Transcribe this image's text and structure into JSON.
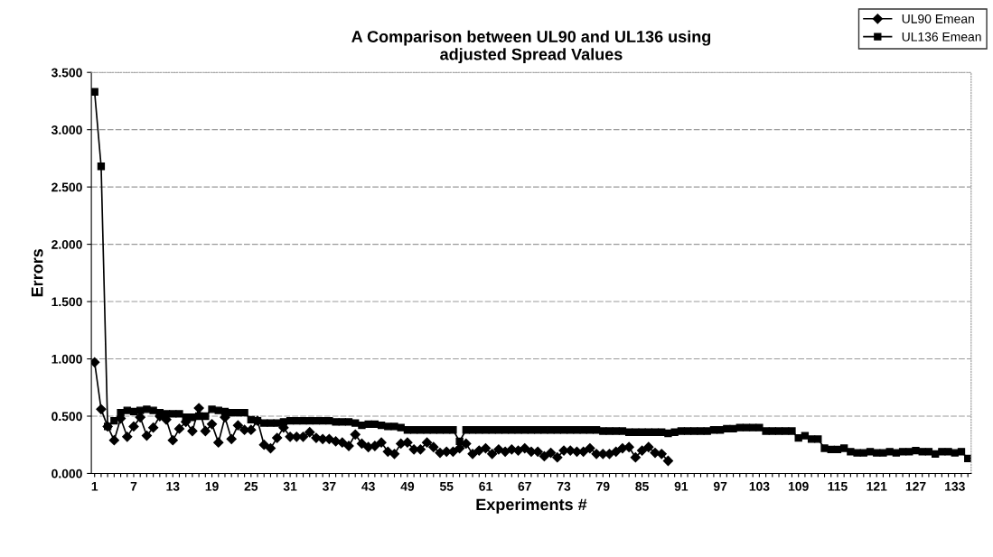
{
  "chart_data": {
    "type": "line",
    "title": "A Comparison between UL90 and UL136 using\nadjusted Spread Values",
    "xlabel": "Experiments #",
    "ylabel": "Errors",
    "categories": [
      "1",
      null,
      null,
      null,
      null,
      null,
      "7",
      null,
      null,
      null,
      null,
      null,
      "13",
      null,
      null,
      null,
      null,
      null,
      "19",
      null,
      null,
      null,
      null,
      null,
      "25",
      null,
      null,
      null,
      null,
      null,
      "31",
      null,
      null,
      null,
      null,
      null,
      "37",
      null,
      null,
      null,
      null,
      null,
      "43",
      null,
      null,
      null,
      null,
      null,
      "49",
      null,
      null,
      null,
      null,
      null,
      "55",
      null,
      null,
      null,
      null,
      null,
      "61",
      null,
      null,
      null,
      null,
      null,
      "67",
      null,
      null,
      null,
      null,
      null,
      "73",
      null,
      null,
      null,
      null,
      null,
      "79",
      null,
      null,
      null,
      null,
      null,
      "85",
      null,
      null,
      null,
      null,
      null,
      "91",
      null,
      null,
      null,
      null,
      null,
      "97",
      null,
      null,
      null,
      null,
      null,
      "103",
      null,
      null,
      null,
      null,
      null,
      "109",
      null,
      null,
      null,
      null,
      null,
      "115",
      null,
      null,
      null,
      null,
      null,
      "121",
      null,
      null,
      null,
      null,
      null,
      "127",
      null,
      null,
      null,
      null,
      null,
      "133",
      null,
      null
    ],
    "series": [
      {
        "name": "UL90 Emean",
        "color": "#000000",
        "marker": "diamond",
        "values": [
          0.97,
          0.56,
          0.41,
          0.29,
          0.48,
          0.32,
          0.41,
          0.49,
          0.33,
          0.4,
          0.5,
          0.47,
          0.29,
          0.39,
          0.45,
          0.37,
          0.57,
          0.37,
          0.43,
          0.27,
          0.49,
          0.3,
          0.42,
          0.38,
          0.38,
          0.46,
          0.25,
          0.22,
          0.31,
          0.4,
          0.32,
          0.32,
          0.32,
          0.36,
          0.31,
          0.3,
          0.3,
          0.28,
          0.27,
          0.24,
          0.34,
          0.26,
          0.23,
          0.24,
          0.27,
          0.19,
          0.17,
          0.26,
          0.27,
          0.21,
          0.21,
          0.27,
          0.23,
          0.18,
          0.19,
          0.19,
          0.22,
          0.26,
          0.17,
          0.2,
          0.22,
          0.17,
          0.21,
          0.19,
          0.21,
          0.2,
          0.22,
          0.19,
          0.19,
          0.15,
          0.18,
          0.14,
          0.2,
          0.2,
          0.19,
          0.19,
          0.22,
          0.17,
          0.17,
          0.17,
          0.19,
          0.22,
          0.23,
          0.14,
          0.2,
          0.23,
          0.18,
          0.17,
          0.11,
          null,
          null,
          null,
          null,
          null,
          null,
          null,
          null,
          null,
          null,
          null,
          null,
          null,
          null,
          null,
          null,
          null,
          null,
          null,
          null,
          null,
          null,
          null,
          null,
          null,
          null,
          null,
          null,
          null,
          null,
          null,
          null,
          null,
          null,
          null,
          null,
          null,
          null,
          null,
          null,
          null,
          null,
          null,
          null,
          null,
          null
        ]
      },
      {
        "name": "UL136 Emean",
        "color": "#000000",
        "marker": "square",
        "values": [
          3.33,
          2.68,
          0.41,
          0.46,
          0.53,
          0.55,
          0.54,
          0.55,
          0.56,
          0.55,
          0.53,
          0.52,
          0.52,
          0.52,
          0.49,
          0.49,
          0.5,
          0.5,
          0.56,
          0.55,
          0.54,
          0.53,
          0.53,
          0.53,
          0.47,
          0.46,
          0.44,
          0.44,
          0.44,
          0.45,
          0.46,
          0.46,
          0.46,
          0.46,
          0.46,
          0.46,
          0.46,
          0.45,
          0.45,
          0.45,
          0.44,
          0.42,
          0.43,
          0.43,
          0.42,
          0.41,
          0.41,
          0.4,
          0.38,
          0.38,
          0.38,
          0.38,
          0.38,
          0.38,
          0.38,
          0.38,
          0.28,
          0.38,
          0.38,
          0.38,
          0.38,
          0.38,
          0.38,
          0.38,
          0.38,
          0.38,
          0.38,
          0.38,
          0.38,
          0.38,
          0.38,
          0.38,
          0.38,
          0.38,
          0.38,
          0.38,
          0.38,
          0.38,
          0.37,
          0.37,
          0.37,
          0.37,
          0.36,
          0.36,
          0.36,
          0.36,
          0.36,
          0.36,
          0.35,
          0.36,
          0.37,
          0.37,
          0.37,
          0.37,
          0.37,
          0.38,
          0.38,
          0.39,
          0.39,
          0.4,
          0.4,
          0.4,
          0.4,
          0.37,
          0.37,
          0.37,
          0.37,
          0.37,
          0.31,
          0.33,
          0.3,
          0.3,
          0.22,
          0.21,
          0.21,
          0.22,
          0.19,
          0.18,
          0.18,
          0.19,
          0.18,
          0.18,
          0.19,
          0.18,
          0.19,
          0.19,
          0.2,
          0.19,
          0.19,
          0.17,
          0.19,
          0.19,
          0.18,
          0.19,
          0.13
        ]
      }
    ],
    "ylim": [
      0,
      3.5
    ],
    "yticks": [
      {
        "value": 0,
        "label": "0.000"
      },
      {
        "value": 0.5,
        "label": "0.500"
      },
      {
        "value": 1,
        "label": "1.000"
      },
      {
        "value": 1.5,
        "label": "1.500"
      },
      {
        "value": 2,
        "label": "2.000"
      },
      {
        "value": 2.5,
        "label": "2.500"
      },
      {
        "value": 3,
        "label": "3.000"
      },
      {
        "value": 3.5,
        "label": "3.500"
      }
    ],
    "grid": "y",
    "legend": "top right",
    "line_style": "solid"
  }
}
